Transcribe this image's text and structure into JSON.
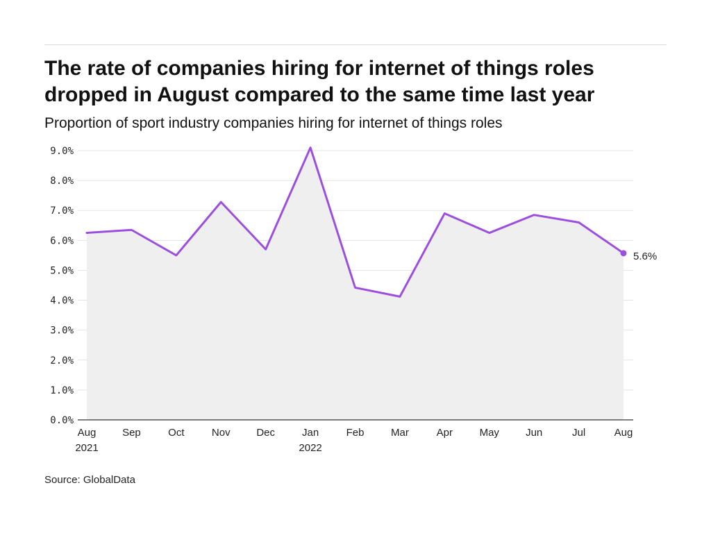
{
  "title": "The rate of companies hiring for internet of things roles dropped in August compared to the same time last year",
  "subtitle": "Proportion of sport industry companies hiring for internet of things roles",
  "source": "Source: GlobalData",
  "colors": {
    "line": "#9b4fdc",
    "area": "#efeff0",
    "grid": "#e3e3e3",
    "axis": "#333333"
  },
  "chart_data": {
    "type": "area",
    "title": "The rate of companies hiring for internet of things roles dropped in August compared to the same time last year",
    "subtitle": "Proportion of sport industry companies hiring for internet of things roles",
    "xlabel": "",
    "ylabel": "",
    "categories": [
      "Aug",
      "Sep",
      "Oct",
      "Nov",
      "Dec",
      "Jan",
      "Feb",
      "Mar",
      "Apr",
      "May",
      "Jun",
      "Jul",
      "Aug"
    ],
    "category_years": [
      "2021",
      "",
      "",
      "",
      "",
      "2022",
      "",
      "",
      "",
      "",
      "",
      "",
      ""
    ],
    "values": [
      6.25,
      6.35,
      5.5,
      7.28,
      5.7,
      9.1,
      4.42,
      4.12,
      6.9,
      6.25,
      6.85,
      6.6,
      5.57
    ],
    "unit": "%",
    "ylim": [
      0,
      9
    ],
    "yticks": [
      0,
      1,
      2,
      3,
      4,
      5,
      6,
      7,
      8,
      9
    ],
    "ytick_labels": [
      "0.0%",
      "1.0%",
      "2.0%",
      "3.0%",
      "4.0%",
      "5.0%",
      "6.0%",
      "7.0%",
      "8.0%",
      "9.0%"
    ],
    "end_label": "5.6%",
    "grid": "horizontal",
    "legend": "none"
  }
}
